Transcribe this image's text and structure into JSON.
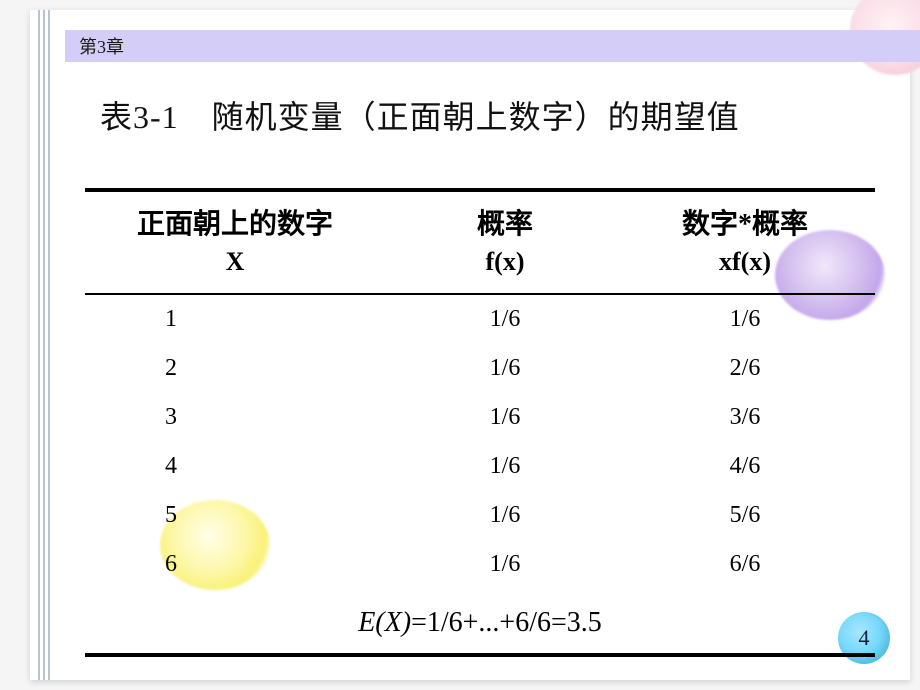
{
  "chapter_tab": "第3章",
  "title": "表3-1　随机变量（正面朝上数字）的期望值",
  "table": {
    "columns": [
      {
        "label": "正面朝上的数字",
        "sub": "X"
      },
      {
        "label": "概率",
        "sub": "f(x)"
      },
      {
        "label": "数字*概率",
        "sub": "xf(x)"
      }
    ],
    "rows": [
      {
        "x": "1",
        "fx": "1/6",
        "xfx": "1/6"
      },
      {
        "x": "2",
        "fx": "1/6",
        "xfx": "2/6"
      },
      {
        "x": "3",
        "fx": "1/6",
        "xfx": "3/6"
      },
      {
        "x": "4",
        "fx": "1/6",
        "xfx": "4/6"
      },
      {
        "x": "5",
        "fx": "1/6",
        "xfx": "5/6"
      },
      {
        "x": "6",
        "fx": "1/6",
        "xfx": "6/6"
      }
    ],
    "footer_lhs": "E(X)",
    "footer_eq1": " = ",
    "footer_mid": "1/6+...+6/6",
    "footer_eq2": " =",
    "footer_rhs": "3.5"
  },
  "page_number": "4",
  "colors": {
    "tab_bg": "#d4cdf7",
    "sideline": "#b8c4d0",
    "page_circle": "#6fd6fb"
  }
}
